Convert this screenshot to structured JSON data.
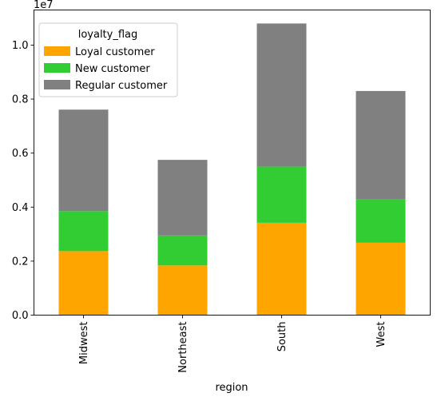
{
  "chart_data": {
    "type": "bar",
    "stacked": true,
    "categories": [
      "Midwest",
      "Northeast",
      "South",
      "West"
    ],
    "series": [
      {
        "name": "Loyal customer",
        "color": "#ffa500",
        "values": [
          2370000,
          1840000,
          3420000,
          2680000
        ]
      },
      {
        "name": "New customer",
        "color": "#32cd32",
        "values": [
          1480000,
          1110000,
          2080000,
          1600000
        ]
      },
      {
        "name": "Regular customer",
        "color": "#808080",
        "values": [
          3760000,
          2800000,
          5300000,
          4020000
        ]
      }
    ],
    "xlabel": "region",
    "ylabel": "",
    "ylim": [
      0,
      11300000
    ],
    "yticks": [
      0,
      2000000,
      4000000,
      6000000,
      8000000,
      10000000
    ],
    "ytick_labels": [
      "0.0",
      "0.2",
      "0.4",
      "0.6",
      "0.8",
      "1.0"
    ],
    "y_offset_text": "1e7",
    "legend": {
      "title": "loyalty_flag",
      "position": "top-left"
    },
    "grid": false
  }
}
